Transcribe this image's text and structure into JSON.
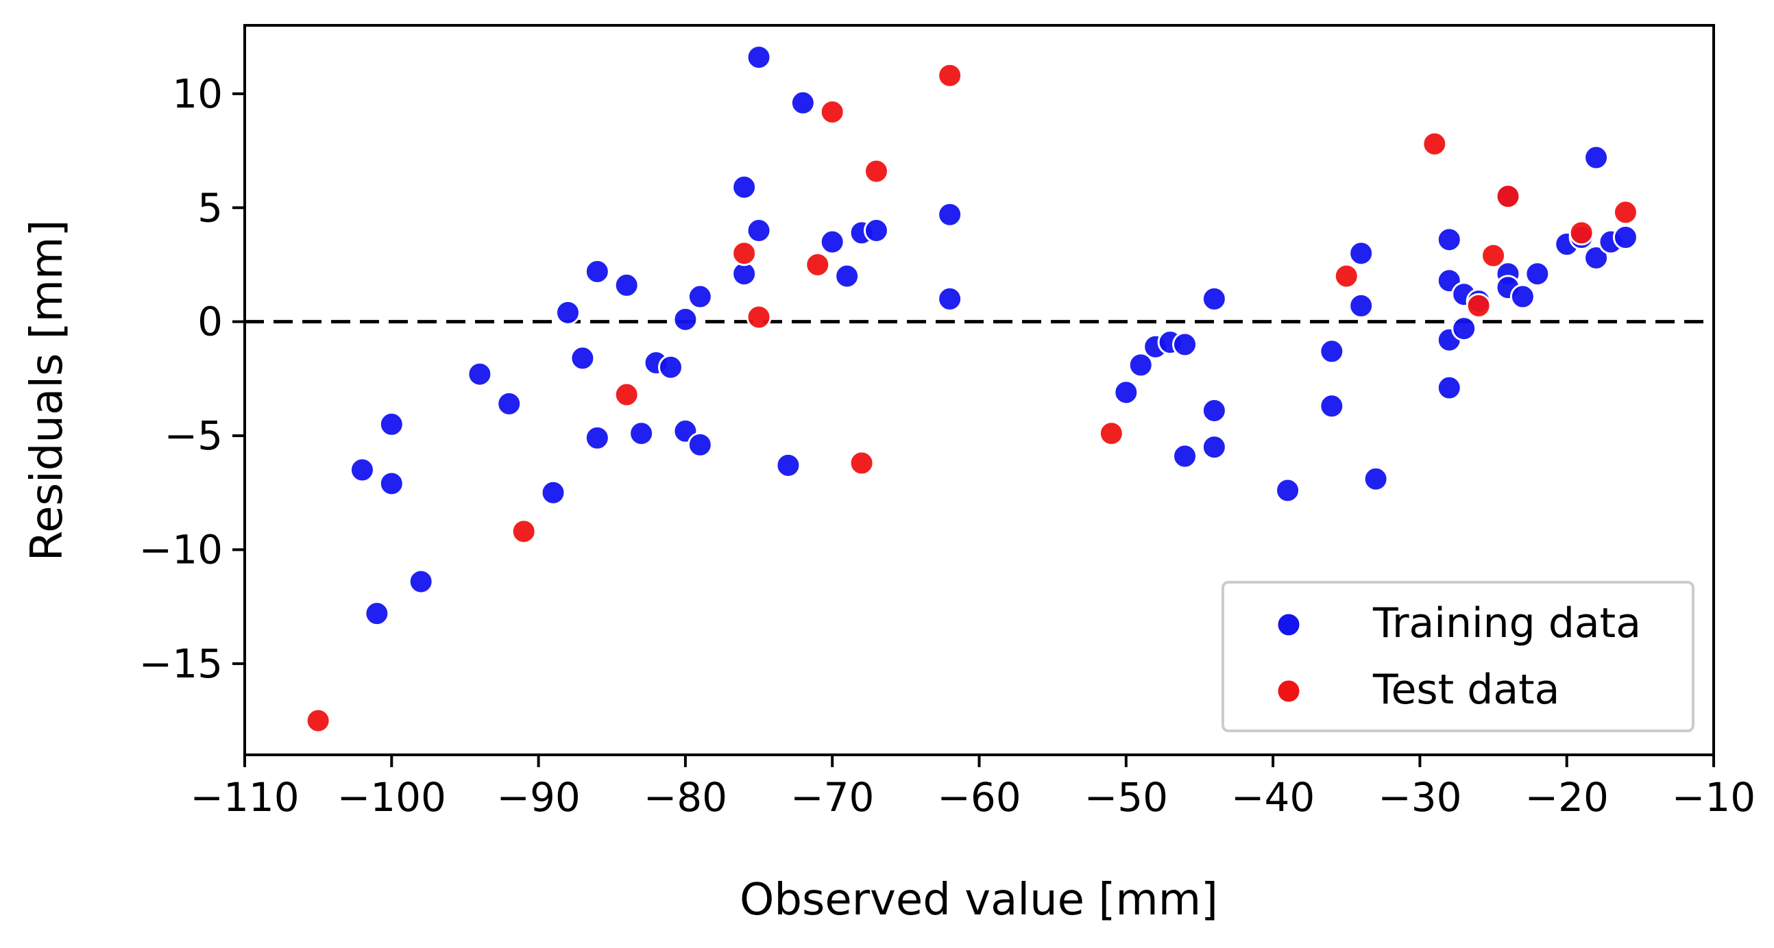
{
  "chart_data": {
    "type": "scatter",
    "title": "",
    "xlabel": "Observed value [mm]",
    "ylabel": "Residuals [mm]",
    "xlim": [
      -110,
      -10
    ],
    "ylim": [
      -19,
      13
    ],
    "xticks": [
      -110,
      -100,
      -90,
      -80,
      -70,
      -60,
      -50,
      -40,
      -30,
      -20,
      -10
    ],
    "yticks": [
      -15,
      -10,
      -5,
      0,
      5,
      10
    ],
    "xtick_labels": [
      "−110",
      "−100",
      "−90",
      "−80",
      "−70",
      "−60",
      "−50",
      "−40",
      "−30",
      "−20",
      "−10"
    ],
    "ytick_labels": [
      "−15",
      "−10",
      "−5",
      "0",
      "5",
      "10"
    ],
    "reference_line": {
      "y": 0,
      "style": "dashed",
      "color": "#000000"
    },
    "legend_position": "lower-right",
    "series": [
      {
        "name": "Training data",
        "color": "#1414f0",
        "points": [
          [
            -102,
            -6.5
          ],
          [
            -101,
            -12.8
          ],
          [
            -100,
            -4.5
          ],
          [
            -100,
            -7.1
          ],
          [
            -98,
            -11.4
          ],
          [
            -94,
            -2.3
          ],
          [
            -92,
            -3.6
          ],
          [
            -89,
            -7.5
          ],
          [
            -88,
            0.4
          ],
          [
            -87,
            -1.6
          ],
          [
            -86,
            2.2
          ],
          [
            -86,
            -5.1
          ],
          [
            -84,
            1.6
          ],
          [
            -83,
            -4.9
          ],
          [
            -82,
            -1.8
          ],
          [
            -81,
            -2.0
          ],
          [
            -80,
            0.1
          ],
          [
            -80,
            -4.8
          ],
          [
            -79,
            1.1
          ],
          [
            -79,
            -5.4
          ],
          [
            -76,
            5.9
          ],
          [
            -76,
            2.1
          ],
          [
            -75,
            11.6
          ],
          [
            -75,
            4.0
          ],
          [
            -73,
            -6.3
          ],
          [
            -72,
            9.6
          ],
          [
            -70,
            3.5
          ],
          [
            -69,
            2.0
          ],
          [
            -68,
            3.9
          ],
          [
            -67,
            4.0
          ],
          [
            -62,
            4.7
          ],
          [
            -62,
            1.0
          ],
          [
            -50,
            -3.1
          ],
          [
            -49,
            -1.9
          ],
          [
            -48,
            -1.1
          ],
          [
            -47,
            -0.9
          ],
          [
            -46,
            -1.0
          ],
          [
            -46,
            -5.9
          ],
          [
            -44,
            1.0
          ],
          [
            -44,
            -3.9
          ],
          [
            -44,
            -5.5
          ],
          [
            -39,
            -7.4
          ],
          [
            -36,
            -1.3
          ],
          [
            -36,
            -3.7
          ],
          [
            -34,
            3.0
          ],
          [
            -34,
            0.7
          ],
          [
            -33,
            -6.9
          ],
          [
            -28,
            3.6
          ],
          [
            -28,
            1.8
          ],
          [
            -28,
            -0.8
          ],
          [
            -28,
            -2.9
          ],
          [
            -27,
            1.2
          ],
          [
            -27,
            -0.3
          ],
          [
            -26,
            0.9
          ],
          [
            -24,
            2.1
          ],
          [
            -24,
            5.5
          ],
          [
            -24,
            1.5
          ],
          [
            -23,
            1.1
          ],
          [
            -22,
            2.1
          ],
          [
            -20,
            3.4
          ],
          [
            -19,
            3.7
          ],
          [
            -18,
            7.2
          ],
          [
            -18,
            2.8
          ],
          [
            -17,
            3.5
          ],
          [
            -16,
            3.7
          ]
        ]
      },
      {
        "name": "Test data",
        "color": "#f01414",
        "points": [
          [
            -105,
            -17.5
          ],
          [
            -91,
            -9.2
          ],
          [
            -84,
            -3.2
          ],
          [
            -76,
            3.0
          ],
          [
            -75,
            0.2
          ],
          [
            -71,
            2.5
          ],
          [
            -70,
            9.2
          ],
          [
            -68,
            -6.2
          ],
          [
            -67,
            6.6
          ],
          [
            -62,
            10.8
          ],
          [
            -51,
            -4.9
          ],
          [
            -35,
            2.0
          ],
          [
            -29,
            7.8
          ],
          [
            -26,
            0.7
          ],
          [
            -25,
            2.9
          ],
          [
            -24,
            5.5
          ],
          [
            -19,
            3.9
          ],
          [
            -16,
            4.8
          ]
        ]
      }
    ]
  }
}
